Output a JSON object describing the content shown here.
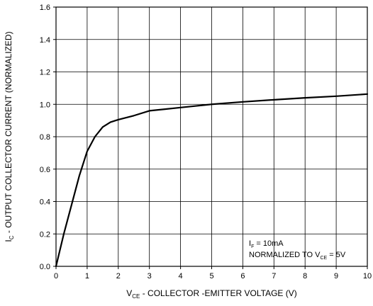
{
  "chart_data": {
    "type": "line",
    "xlim": [
      0,
      10
    ],
    "ylim": [
      0,
      1.6
    ],
    "x_ticks": [
      0,
      1,
      2,
      3,
      4,
      5,
      6,
      7,
      8,
      9,
      10
    ],
    "y_ticks": [
      0.0,
      0.2,
      0.4,
      0.6,
      0.8,
      1.0,
      1.2,
      1.4,
      1.6
    ],
    "x_tick_labels": [
      "0",
      "1",
      "2",
      "3",
      "4",
      "5",
      "6",
      "7",
      "8",
      "9",
      "10"
    ],
    "y_tick_labels": [
      "0.0",
      "0.2",
      "0.4",
      "0.6",
      "0.8",
      "1.0",
      "1.2",
      "1.4",
      "1.6"
    ],
    "grid": true,
    "xlabel": {
      "main": "V",
      "sub": "CE",
      "rest": " - COLLECTOR -EMITTER VOLTAGE (V)"
    },
    "ylabel": {
      "main": "I",
      "sub": "C",
      "rest": " - OUTPUT COLLECTOR CURRENT (NORMALIZED)"
    },
    "annotations": {
      "placement": "bottom-right",
      "line1": {
        "main": "I",
        "sub": "F",
        "rest": " = 10mA"
      },
      "line2": {
        "main": "NORMALIZED TO V",
        "sub": "CE",
        "rest": " = 5V"
      }
    },
    "series": [
      {
        "x": [
          0,
          0.25,
          0.5,
          0.75,
          1.0,
          1.25,
          1.5,
          1.75,
          2.0,
          2.5,
          3.0,
          3.5,
          4.0,
          4.5,
          5.0,
          6.0,
          7.0,
          8.0,
          9.0,
          10.0
        ],
        "y": [
          0,
          0.2,
          0.38,
          0.56,
          0.71,
          0.8,
          0.86,
          0.89,
          0.905,
          0.93,
          0.96,
          0.97,
          0.98,
          0.99,
          1.0,
          1.015,
          1.028,
          1.04,
          1.05,
          1.063
        ]
      }
    ]
  }
}
